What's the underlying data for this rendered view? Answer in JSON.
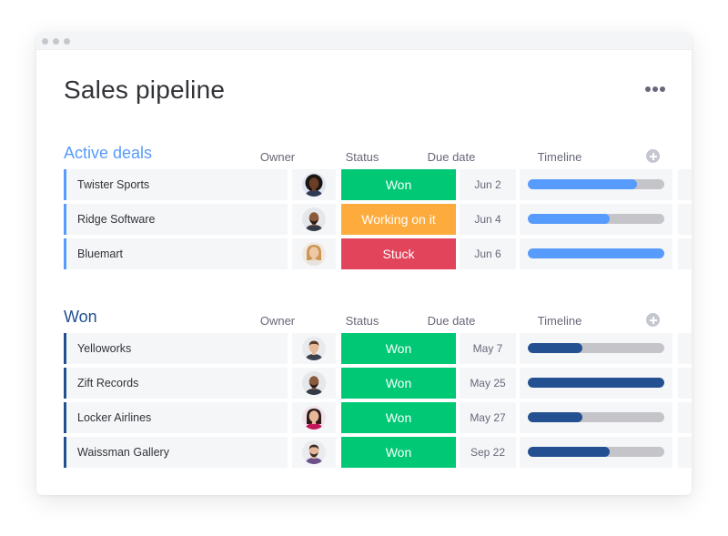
{
  "board": {
    "title": "Sales pipeline"
  },
  "columns": {
    "owner": "Owner",
    "status": "Status",
    "due": "Due date",
    "timeline": "Timeline"
  },
  "colors": {
    "active_group": "#579bfc",
    "won_group": "#225091",
    "status_won": "#00c875",
    "status_working": "#fdab3d",
    "status_stuck": "#e2445c"
  },
  "groups": [
    {
      "title": "Active deals",
      "items": [
        {
          "name": "Twister Sports",
          "owner_avatar": "avatar-woman-dark-curly",
          "status": "Won",
          "status_color": "#00c875",
          "due": "Jun 2",
          "timeline_progress": 0.8
        },
        {
          "name": "Ridge Software",
          "owner_avatar": "avatar-man-bald-beard",
          "status": "Working on it",
          "status_color": "#fdab3d",
          "due": "Jun 4",
          "timeline_progress": 0.6
        },
        {
          "name": "Bluemart",
          "owner_avatar": "avatar-woman-blonde",
          "status": "Stuck",
          "status_color": "#e2445c",
          "due": "Jun 6",
          "timeline_progress": 1.0
        }
      ]
    },
    {
      "title": "Won",
      "items": [
        {
          "name": "Yelloworks",
          "owner_avatar": "avatar-man-short-hair",
          "status": "Won",
          "status_color": "#00c875",
          "due": "May 7",
          "timeline_progress": 0.4
        },
        {
          "name": "Zift Records",
          "owner_avatar": "avatar-man-bald-beard",
          "status": "Won",
          "status_color": "#00c875",
          "due": "May 25",
          "timeline_progress": 1.0
        },
        {
          "name": "Locker Airlines",
          "owner_avatar": "avatar-woman-dark-hair",
          "status": "Won",
          "status_color": "#00c875",
          "due": "May 27",
          "timeline_progress": 0.4
        },
        {
          "name": "Waissman Gallery",
          "owner_avatar": "avatar-man-beard-smile",
          "status": "Won",
          "status_color": "#00c875",
          "due": "Sep 22",
          "timeline_progress": 0.6
        }
      ]
    }
  ]
}
